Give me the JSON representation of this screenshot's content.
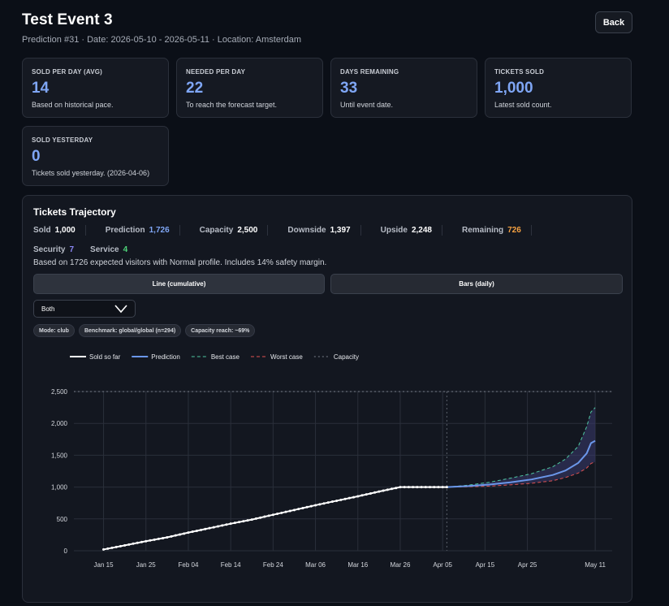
{
  "header": {
    "title": "Test Event 3",
    "subtitle": "Prediction #31 · Date: 2026-05-10 - 2026-05-11 · Location: Amsterdam",
    "back_label": "Back"
  },
  "stats": [
    {
      "label": "SOLD PER DAY (AVG)",
      "value": "14",
      "desc": "Based on historical pace."
    },
    {
      "label": "NEEDED PER DAY",
      "value": "22",
      "desc": "To reach the forecast target."
    },
    {
      "label": "DAYS REMAINING",
      "value": "33",
      "desc": "Until event date."
    },
    {
      "label": "TICKETS SOLD",
      "value": "1,000",
      "desc": "Latest sold count."
    },
    {
      "label": "SOLD YESTERDAY",
      "value": "0",
      "desc": "Tickets sold yesterday. (2026-04-06)"
    }
  ],
  "trajectory": {
    "title": "Tickets Trajectory",
    "metrics": [
      {
        "label": "Sold",
        "value": "1,000",
        "color": "#ffffff"
      },
      {
        "label": "Prediction",
        "value": "1,726",
        "color": "#7fa6f5"
      },
      {
        "label": "Capacity",
        "value": "2,500",
        "color": "#ffffff"
      },
      {
        "label": "Downside",
        "value": "1,397",
        "color": "#ffffff"
      },
      {
        "label": "Upside",
        "value": "2,248",
        "color": "#ffffff"
      },
      {
        "label": "Remaining",
        "value": "726",
        "color": "#f5a142"
      }
    ],
    "metrics2": [
      {
        "label": "Security",
        "value": "7",
        "color": "#8b87f5"
      },
      {
        "label": "Service",
        "value": "4",
        "color": "#4fd67a"
      }
    ],
    "note": "Based on 1726 expected visitors with Normal profile. Includes 14% safety margin.",
    "view_line": "Line (cumulative)",
    "view_bars": "Bars (daily)",
    "select_value": "Both",
    "chips": [
      "Mode: club",
      "Benchmark: global/global (n=294)",
      "Capacity reach: ~69%"
    ]
  },
  "chart_data": {
    "type": "line",
    "legend": [
      "Sold so far",
      "Prediction",
      "Best case",
      "Worst case",
      "Capacity"
    ],
    "legend_position": "top-left",
    "x_ticks": [
      "Jan 15",
      "Jan 25",
      "Feb 04",
      "Feb 14",
      "Feb 24",
      "Mar 06",
      "Mar 16",
      "Mar 26",
      "Apr 05",
      "Apr 15",
      "Apr 25",
      "May 11"
    ],
    "y_ticks": [
      "0",
      "500",
      "1,000",
      "1,500",
      "2,000",
      "2,500"
    ],
    "ylim": [
      0,
      2500
    ],
    "grid": true,
    "capacity": 2500,
    "today": "2026-04-06",
    "sold": {
      "x": [
        "2026-01-15",
        "2026-01-20",
        "2026-01-25",
        "2026-01-30",
        "2026-02-04",
        "2026-02-09",
        "2026-02-14",
        "2026-02-19",
        "2026-02-24",
        "2026-03-01",
        "2026-03-06",
        "2026-03-11",
        "2026-03-16",
        "2026-03-21",
        "2026-03-26",
        "2026-03-31",
        "2026-04-06"
      ],
      "y": [
        20,
        85,
        150,
        210,
        285,
        355,
        425,
        490,
        565,
        640,
        715,
        785,
        855,
        930,
        1000,
        1000,
        1000
      ]
    },
    "prediction": {
      "x": [
        "2026-04-06",
        "2026-04-11",
        "2026-04-16",
        "2026-04-21",
        "2026-04-26",
        "2026-05-01",
        "2026-05-04",
        "2026-05-07",
        "2026-05-09",
        "2026-05-10",
        "2026-05-11"
      ],
      "y": [
        1000,
        1015,
        1040,
        1075,
        1120,
        1190,
        1260,
        1380,
        1530,
        1690,
        1726
      ]
    },
    "best_case": {
      "x": [
        "2026-04-06",
        "2026-04-11",
        "2026-04-16",
        "2026-04-21",
        "2026-04-26",
        "2026-05-01",
        "2026-05-04",
        "2026-05-07",
        "2026-05-09",
        "2026-05-10",
        "2026-05-11"
      ],
      "y": [
        1000,
        1030,
        1075,
        1140,
        1210,
        1320,
        1440,
        1640,
        1950,
        2180,
        2248
      ]
    },
    "worst_case": {
      "x": [
        "2026-04-06",
        "2026-04-11",
        "2026-04-16",
        "2026-04-21",
        "2026-04-26",
        "2026-05-01",
        "2026-05-04",
        "2026-05-07",
        "2026-05-09",
        "2026-05-10",
        "2026-05-11"
      ],
      "y": [
        1000,
        1005,
        1015,
        1035,
        1060,
        1100,
        1150,
        1220,
        1300,
        1370,
        1397
      ]
    }
  },
  "colors": {
    "sold": "#ffffff",
    "prediction": "#6b97ea",
    "best": "#4fc7a0",
    "worst": "#e05252",
    "band": "#3a3a6e",
    "grid": "#2a2f3a"
  }
}
